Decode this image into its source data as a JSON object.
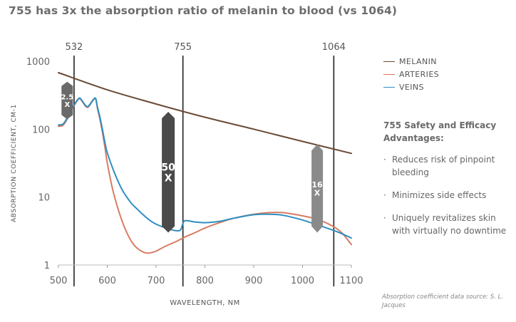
{
  "title": "755 has 3x the absorption ratio of melanin to blood (vs 1064)",
  "legend": [
    {
      "label": "MELANIN",
      "color": "#6b4a34"
    },
    {
      "label": "ARTERIES",
      "color": "#d77c61"
    },
    {
      "label": "VEINS",
      "color": "#2f8ec1"
    }
  ],
  "advantages": {
    "title": "755 Safety and Efficacy Advantages:",
    "items": [
      "Reduces risk of pinpoint bleeding",
      "Minimizes side effects",
      "Uniquely revitalizes skin with virtually no downtime"
    ]
  },
  "source": "Absorption coefficient data source: S. L. Jacques",
  "chart_data": {
    "type": "line",
    "xlabel": "WAVELENGTH, NM",
    "ylabel": "ABSORPTION COEFFICIENT, CM-1",
    "xlim": [
      500,
      1100
    ],
    "ylim": [
      1,
      1000
    ],
    "yscale": "log",
    "xticks": [
      500,
      600,
      700,
      800,
      900,
      1000,
      1100
    ],
    "yticks": [
      1,
      10,
      100,
      1000
    ],
    "series": [
      {
        "name": "MELANIN",
        "color": "#6b4a34",
        "x": [
          500,
          600,
          700,
          800,
          900,
          1000,
          1100
        ],
        "y": [
          680,
          380,
          235,
          150,
          100,
          66,
          44
        ]
      },
      {
        "name": "ARTERIES",
        "color": "#d77c61",
        "x": [
          500,
          510,
          520,
          530,
          542,
          548,
          555,
          560,
          565,
          570,
          576,
          580,
          585,
          590,
          595,
          600,
          610,
          620,
          630,
          640,
          650,
          660,
          670,
          680,
          690,
          700,
          720,
          740,
          760,
          780,
          800,
          830,
          860,
          900,
          930,
          960,
          1000,
          1030,
          1060,
          1080,
          1100
        ],
        "y": [
          110,
          115,
          150,
          210,
          280,
          260,
          220,
          210,
          230,
          260,
          280,
          200,
          140,
          90,
          55,
          32,
          14,
          7.5,
          4.5,
          3,
          2.2,
          1.8,
          1.6,
          1.5,
          1.52,
          1.6,
          1.9,
          2.2,
          2.6,
          3,
          3.5,
          4.2,
          4.9,
          5.6,
          5.9,
          5.9,
          5.3,
          4.7,
          3.8,
          3,
          2
        ]
      },
      {
        "name": "VEINS",
        "color": "#2f8ec1",
        "x": [
          500,
          510,
          520,
          530,
          542,
          548,
          555,
          560,
          565,
          570,
          576,
          580,
          585,
          590,
          595,
          600,
          610,
          620,
          630,
          640,
          650,
          660,
          670,
          680,
          690,
          700,
          720,
          740,
          750,
          755,
          760,
          780,
          800,
          830,
          860,
          900,
          930,
          960,
          1000,
          1030,
          1060,
          1080,
          1100
        ],
        "y": [
          115,
          120,
          155,
          215,
          285,
          265,
          225,
          215,
          235,
          265,
          285,
          210,
          150,
          100,
          65,
          45,
          28,
          18.5,
          13,
          10,
          8,
          6.8,
          5.8,
          5,
          4.4,
          4,
          3.5,
          3.2,
          3.3,
          4.1,
          4.5,
          4.3,
          4.2,
          4.4,
          4.9,
          5.5,
          5.6,
          5.4,
          4.6,
          3.9,
          3.3,
          2.9,
          2.5
        ]
      }
    ],
    "markers": [
      {
        "x": 532,
        "label": "532"
      },
      {
        "x": 755,
        "label": "755"
      },
      {
        "x": 1064,
        "label": "1064"
      }
    ],
    "ratio_badges": [
      {
        "label": "2.5 X",
        "x": 518,
        "y_low": 140,
        "y_high": 500
      },
      {
        "label": "50 X",
        "x": 725,
        "y_low": 3,
        "y_high": 180
      },
      {
        "label": "16 X",
        "x": 1030,
        "y_low": 3,
        "y_high": 60
      }
    ]
  }
}
